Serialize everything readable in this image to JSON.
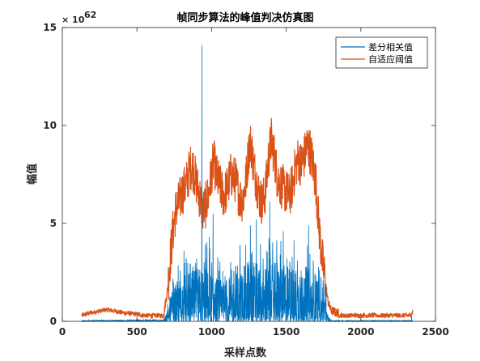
{
  "chart_data": {
    "type": "line",
    "title": "帧同步算法的峰值判决仿真图",
    "xlabel": "采样点数",
    "ylabel": "幅值",
    "xlim": [
      0,
      2500
    ],
    "ylim": [
      0,
      15
    ],
    "xticks": [
      0,
      500,
      1000,
      1500,
      2000,
      2500
    ],
    "xtick_labels": [
      "0",
      "500",
      "1000",
      "1500",
      "2000",
      "2500"
    ],
    "yticks": [
      0,
      5,
      10,
      15
    ],
    "ytick_labels": [
      "0",
      "5",
      "10",
      "15"
    ],
    "y_exponent_base": "× 10",
    "y_exponent_power": "62",
    "grid": false,
    "legend_position": "top-right",
    "series": [
      {
        "name": "差分相关值",
        "color": "#0072BD",
        "envelope": [
          [
            130,
            0.05
          ],
          [
            680,
            0.1
          ],
          [
            700,
            0.4
          ],
          [
            760,
            0.9
          ],
          [
            850,
            1.2
          ],
          [
            950,
            1.3
          ],
          [
            1050,
            1.0
          ],
          [
            1150,
            1.1
          ],
          [
            1250,
            1.4
          ],
          [
            1350,
            1.3
          ],
          [
            1450,
            1.4
          ],
          [
            1550,
            1.3
          ],
          [
            1650,
            1.3
          ],
          [
            1750,
            1.0
          ],
          [
            1780,
            0.3
          ],
          [
            1800,
            0.05
          ],
          [
            2350,
            0.05
          ]
        ],
        "peaks": [
          [
            705,
            0.9
          ],
          [
            720,
            1.2
          ],
          [
            770,
            1.8
          ],
          [
            790,
            2.6
          ],
          [
            815,
            3.6
          ],
          [
            845,
            2.0
          ],
          [
            875,
            2.8
          ],
          [
            900,
            3.2
          ],
          [
            935,
            14.1
          ],
          [
            950,
            3.0
          ],
          [
            985,
            4.3
          ],
          [
            1000,
            3.0
          ],
          [
            1010,
            5.5
          ],
          [
            1050,
            2.6
          ],
          [
            1090,
            2.3
          ],
          [
            1120,
            2.1
          ],
          [
            1160,
            2.8
          ],
          [
            1190,
            3.9
          ],
          [
            1215,
            2.2
          ],
          [
            1240,
            3.0
          ],
          [
            1260,
            4.9
          ],
          [
            1280,
            3.0
          ],
          [
            1300,
            5.2
          ],
          [
            1320,
            2.6
          ],
          [
            1345,
            3.2
          ],
          [
            1370,
            3.6
          ],
          [
            1390,
            6.1
          ],
          [
            1410,
            3.6
          ],
          [
            1440,
            3.0
          ],
          [
            1460,
            3.4
          ],
          [
            1480,
            4.6
          ],
          [
            1505,
            3.2
          ],
          [
            1525,
            3.0
          ],
          [
            1540,
            3.3
          ],
          [
            1575,
            3.1
          ],
          [
            1600,
            2.6
          ],
          [
            1650,
            4.9
          ],
          [
            1680,
            1.3
          ],
          [
            1720,
            1.5
          ],
          [
            1760,
            0.8
          ],
          [
            2340,
            0.3
          ]
        ]
      },
      {
        "name": "自适应阈值",
        "color": "#D95319",
        "baseline": [
          [
            130,
            0.3
          ],
          [
            170,
            0.4
          ],
          [
            300,
            0.6
          ],
          [
            400,
            0.45
          ],
          [
            560,
            0.3
          ],
          [
            680,
            0.3
          ],
          [
            2330,
            0.3
          ],
          [
            2350,
            0.5
          ]
        ],
        "curve": [
          [
            680,
            0.3
          ],
          [
            690,
            0.9
          ],
          [
            705,
            1.6
          ],
          [
            720,
            3.0
          ],
          [
            740,
            4.5
          ],
          [
            760,
            5.7
          ],
          [
            780,
            6.0
          ],
          [
            800,
            6.5
          ],
          [
            830,
            7.0
          ],
          [
            855,
            7.8
          ],
          [
            870,
            8.0
          ],
          [
            900,
            7.0
          ],
          [
            920,
            6.4
          ],
          [
            940,
            5.6
          ],
          [
            960,
            5.9
          ],
          [
            980,
            6.5
          ],
          [
            1000,
            7.6
          ],
          [
            1015,
            8.2
          ],
          [
            1030,
            7.5
          ],
          [
            1060,
            6.8
          ],
          [
            1080,
            6.4
          ],
          [
            1100,
            6.7
          ],
          [
            1130,
            7.5
          ],
          [
            1160,
            7.2
          ],
          [
            1190,
            6.3
          ],
          [
            1210,
            6.2
          ],
          [
            1230,
            7.2
          ],
          [
            1250,
            8.8
          ],
          [
            1265,
            9.1
          ],
          [
            1280,
            8.0
          ],
          [
            1300,
            7.2
          ],
          [
            1320,
            6.4
          ],
          [
            1340,
            6.0
          ],
          [
            1360,
            6.6
          ],
          [
            1380,
            8.2
          ],
          [
            1400,
            9.3
          ],
          [
            1420,
            8.5
          ],
          [
            1440,
            7.4
          ],
          [
            1460,
            7.0
          ],
          [
            1480,
            6.8
          ],
          [
            1500,
            6.6
          ],
          [
            1520,
            6.4
          ],
          [
            1540,
            6.9
          ],
          [
            1560,
            7.8
          ],
          [
            1580,
            8.3
          ],
          [
            1600,
            8.0
          ],
          [
            1620,
            8.4
          ],
          [
            1640,
            9.0
          ],
          [
            1660,
            8.7
          ],
          [
            1680,
            8.0
          ],
          [
            1700,
            7.0
          ],
          [
            1720,
            4.8
          ],
          [
            1740,
            3.2
          ],
          [
            1760,
            2.2
          ],
          [
            1780,
            1.0
          ],
          [
            1800,
            0.55
          ],
          [
            1850,
            0.4
          ]
        ],
        "spread": 1.2
      }
    ]
  }
}
